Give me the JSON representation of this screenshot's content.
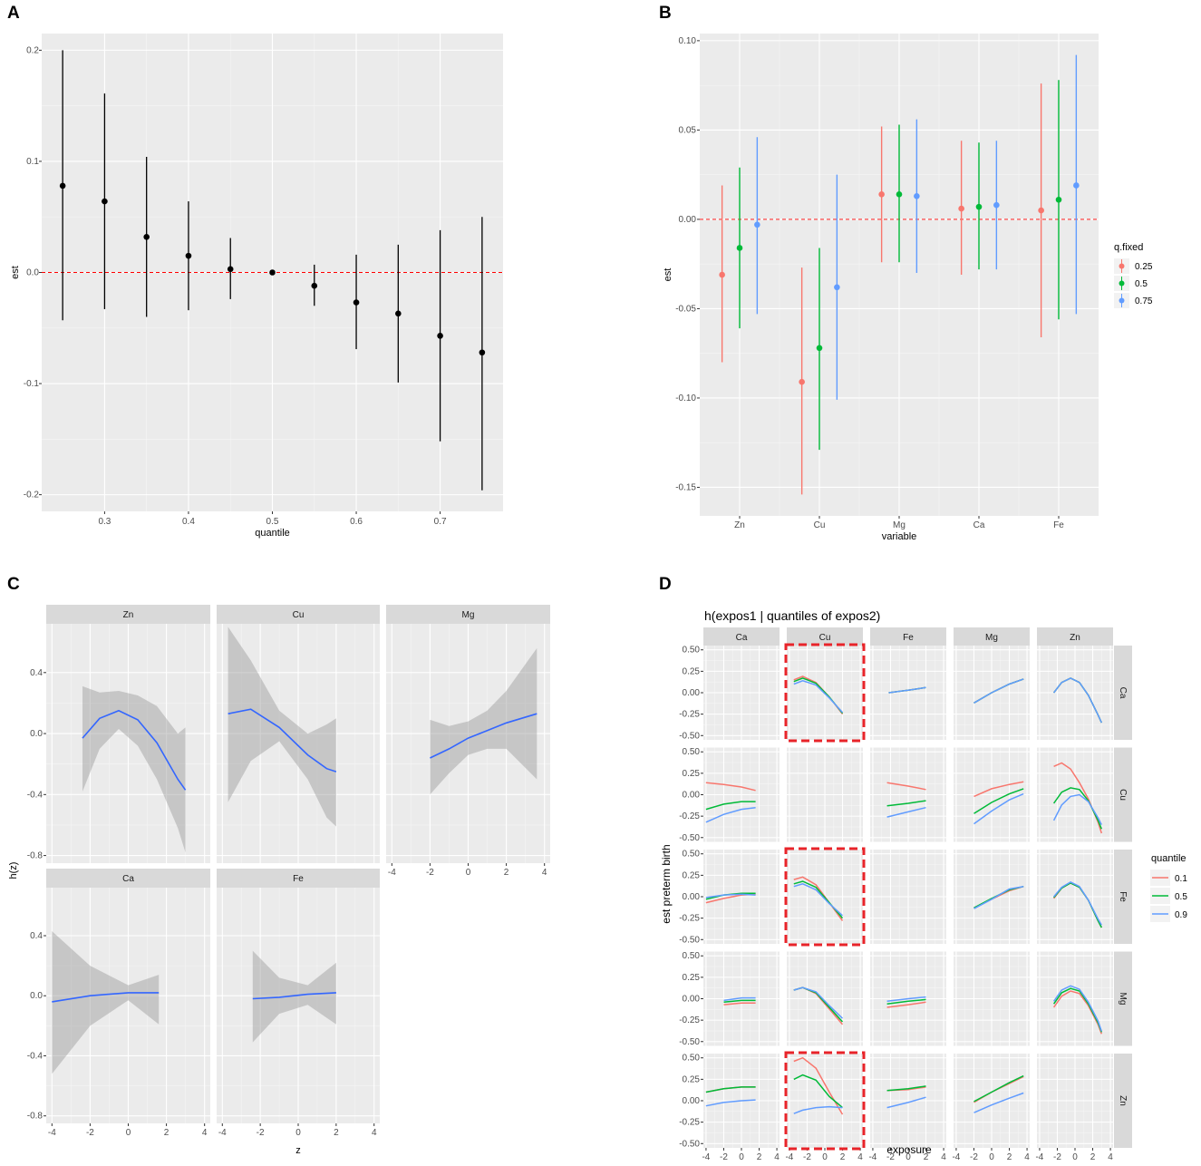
{
  "chart_data": [
    {
      "panel": "A",
      "type": "errorbar",
      "xlabel": "quantile",
      "ylabel": "est",
      "xlim": [
        0.225,
        0.775
      ],
      "ylim": [
        -0.215,
        0.215
      ],
      "xticks": [
        0.3,
        0.4,
        0.5,
        0.6,
        0.7
      ],
      "xtick_labels": [
        "0.3",
        "0.4",
        "0.5",
        "0.6",
        "0.7"
      ],
      "yticks": [
        -0.2,
        -0.1,
        0.0,
        0.1,
        0.2
      ],
      "ytick_labels": [
        "-0.2",
        "-0.1",
        "0.0",
        "0.1",
        "0.2"
      ],
      "reference_line": 0,
      "points": [
        {
          "x": 0.25,
          "y": 0.078,
          "lo": -0.043,
          "hi": 0.2
        },
        {
          "x": 0.3,
          "y": 0.064,
          "lo": -0.033,
          "hi": 0.161
        },
        {
          "x": 0.35,
          "y": 0.032,
          "lo": -0.04,
          "hi": 0.104
        },
        {
          "x": 0.4,
          "y": 0.015,
          "lo": -0.034,
          "hi": 0.064
        },
        {
          "x": 0.45,
          "y": 0.003,
          "lo": -0.024,
          "hi": 0.031
        },
        {
          "x": 0.5,
          "y": 0.0,
          "lo": 0.0,
          "hi": 0.0
        },
        {
          "x": 0.55,
          "y": -0.012,
          "lo": -0.03,
          "hi": 0.007
        },
        {
          "x": 0.6,
          "y": -0.027,
          "lo": -0.069,
          "hi": 0.016
        },
        {
          "x": 0.65,
          "y": -0.037,
          "lo": -0.099,
          "hi": 0.025
        },
        {
          "x": 0.7,
          "y": -0.057,
          "lo": -0.152,
          "hi": 0.038
        },
        {
          "x": 0.75,
          "y": -0.072,
          "lo": -0.196,
          "hi": 0.05
        }
      ]
    },
    {
      "panel": "B",
      "type": "errorbar",
      "xlabel": "variable",
      "ylabel": "est",
      "categories": [
        "Zn",
        "Cu",
        "Mg",
        "Ca",
        "Fe"
      ],
      "ylim": [
        -0.166,
        0.104
      ],
      "yticks": [
        -0.15,
        -0.1,
        -0.05,
        0.0,
        0.05,
        0.1
      ],
      "ytick_labels": [
        "-0.15",
        "-0.10",
        "-0.05",
        "0.00",
        "0.05",
        "0.10"
      ],
      "reference_line": 0,
      "legend_title": "q.fixed",
      "legend_position": "right",
      "series": [
        {
          "name": "0.25",
          "color": "#F8766D",
          "values": [
            -0.031,
            -0.091,
            0.014,
            0.006,
            0.005
          ],
          "lo": [
            -0.08,
            -0.154,
            -0.024,
            -0.031,
            -0.066
          ],
          "hi": [
            0.019,
            -0.027,
            0.052,
            0.044,
            0.076
          ]
        },
        {
          "name": "0.5",
          "color": "#00BA38",
          "values": [
            -0.016,
            -0.072,
            0.014,
            0.007,
            0.011
          ],
          "lo": [
            -0.061,
            -0.129,
            -0.024,
            -0.028,
            -0.056
          ],
          "hi": [
            0.029,
            -0.016,
            0.053,
            0.043,
            0.078
          ]
        },
        {
          "name": "0.75",
          "color": "#619CFF",
          "values": [
            -0.003,
            -0.038,
            0.013,
            0.008,
            0.019
          ],
          "lo": [
            -0.053,
            -0.101,
            -0.03,
            -0.028,
            -0.053
          ],
          "hi": [
            0.046,
            0.025,
            0.056,
            0.044,
            0.092
          ]
        }
      ]
    },
    {
      "panel": "C",
      "type": "line",
      "xlabel": "z",
      "ylabel": "h(z)",
      "xlim": [
        -4.3,
        4.3
      ],
      "ylim": [
        -0.85,
        0.72
      ],
      "xticks": [
        -4,
        -2,
        0,
        2,
        4
      ],
      "xtick_labels": [
        "-4",
        "-2",
        "0",
        "2",
        "4"
      ],
      "yticks": [
        -0.8,
        -0.4,
        0.0,
        0.4
      ],
      "ytick_labels": [
        "-0.8",
        "-0.4",
        "0.0",
        "0.4"
      ],
      "line_color": "#3366FF",
      "band_color": "#999999",
      "facets": [
        {
          "name": "Zn",
          "x": [
            -2.4,
            -1.5,
            -0.5,
            0.5,
            1.5,
            2.6,
            3.0
          ],
          "y": [
            -0.03,
            0.1,
            0.15,
            0.09,
            -0.06,
            -0.3,
            -0.37
          ],
          "lo": [
            -0.38,
            -0.1,
            0.03,
            -0.08,
            -0.3,
            -0.62,
            -0.78
          ],
          "hi": [
            0.31,
            0.27,
            0.28,
            0.25,
            0.18,
            0.0,
            0.04
          ]
        },
        {
          "name": "Cu",
          "x": [
            -3.7,
            -2.5,
            -1.0,
            0.5,
            1.5,
            2.0
          ],
          "y": [
            0.13,
            0.16,
            0.04,
            -0.14,
            -0.23,
            -0.25
          ],
          "lo": [
            -0.45,
            -0.18,
            -0.05,
            -0.3,
            -0.55,
            -0.61
          ],
          "hi": [
            0.7,
            0.48,
            0.15,
            0.0,
            0.06,
            0.1
          ]
        },
        {
          "name": "Mg",
          "x": [
            -2.0,
            -1.0,
            0.0,
            1.0,
            2.0,
            3.6
          ],
          "y": [
            -0.16,
            -0.1,
            -0.03,
            0.02,
            0.07,
            0.13
          ],
          "lo": [
            -0.4,
            -0.26,
            -0.14,
            -0.1,
            -0.1,
            -0.3
          ],
          "hi": [
            0.09,
            0.05,
            0.08,
            0.15,
            0.28,
            0.56
          ]
        },
        {
          "name": "Ca",
          "x": [
            -4.0,
            -2.0,
            0.0,
            1.6
          ],
          "y": [
            -0.04,
            0.0,
            0.02,
            0.02
          ],
          "lo": [
            -0.52,
            -0.2,
            -0.03,
            -0.19
          ],
          "hi": [
            0.43,
            0.2,
            0.07,
            0.14
          ]
        },
        {
          "name": "Fe",
          "x": [
            -2.4,
            -1.0,
            0.5,
            2.0
          ],
          "y": [
            -0.02,
            -0.01,
            0.01,
            0.02
          ],
          "lo": [
            -0.31,
            -0.12,
            -0.06,
            -0.19
          ],
          "hi": [
            0.3,
            0.12,
            0.07,
            0.22
          ]
        }
      ]
    },
    {
      "panel": "D",
      "type": "line",
      "title": "h(expos1 | quantiles of expos2)",
      "xlabel": "exposure",
      "ylabel": "est preterm birth",
      "xlim": [
        -4.3,
        4.3
      ],
      "ylim": [
        -0.55,
        0.55
      ],
      "xticks": [
        -4,
        -2,
        0,
        2,
        4
      ],
      "xtick_labels": [
        "-4",
        "-2",
        "0",
        "2",
        "4"
      ],
      "yticks": [
        -0.5,
        -0.25,
        0.0,
        0.25,
        0.5
      ],
      "ytick_labels": [
        "-0.50",
        "-0.25",
        "0.00",
        "0.25",
        "0.50"
      ],
      "columns": [
        "Ca",
        "Cu",
        "Fe",
        "Mg",
        "Zn"
      ],
      "rows": [
        "Ca",
        "Cu",
        "Fe",
        "Mg",
        "Zn"
      ],
      "legend_title": "quantile",
      "legend_position": "right",
      "series_names": [
        "0.1",
        "0.5",
        "0.9"
      ],
      "series_colors": [
        "#F8766D",
        "#00BA38",
        "#619CFF"
      ],
      "highlight_color": "#E8242A",
      "highlighted_cells": [
        [
          0,
          1
        ],
        [
          2,
          1
        ],
        [
          4,
          1
        ]
      ],
      "cells": [
        {
          "row": 0,
          "col": 1,
          "x": [
            -3.5,
            -2.5,
            -1.0,
            0.5,
            2.0
          ],
          "series": [
            [
              0.15,
              0.19,
              0.12,
              -0.05,
              -0.25
            ],
            [
              0.13,
              0.17,
              0.11,
              -0.05,
              -0.24
            ],
            [
              0.1,
              0.14,
              0.09,
              -0.06,
              -0.23
            ]
          ]
        },
        {
          "row": 0,
          "col": 2,
          "x": [
            -2.2,
            0.0,
            2.0
          ],
          "series": [
            [
              0.0,
              0.03,
              0.06
            ],
            [
              0.0,
              0.03,
              0.06
            ],
            [
              0.0,
              0.03,
              0.06
            ]
          ]
        },
        {
          "row": 0,
          "col": 3,
          "x": [
            -2.0,
            0.0,
            2.0,
            3.6
          ],
          "series": [
            [
              -0.12,
              0.0,
              0.1,
              0.16
            ],
            [
              -0.12,
              0.0,
              0.1,
              0.16
            ],
            [
              -0.12,
              0.0,
              0.1,
              0.16
            ]
          ]
        },
        {
          "row": 0,
          "col": 4,
          "x": [
            -2.4,
            -1.5,
            -0.5,
            0.5,
            1.5,
            2.6,
            3.0
          ],
          "series": [
            [
              0.0,
              0.12,
              0.17,
              0.12,
              -0.03,
              -0.26,
              -0.35
            ],
            [
              0.0,
              0.12,
              0.17,
              0.12,
              -0.03,
              -0.26,
              -0.35
            ],
            [
              0.0,
              0.12,
              0.17,
              0.12,
              -0.03,
              -0.26,
              -0.35
            ]
          ]
        },
        {
          "row": 1,
          "col": 0,
          "x": [
            -4.0,
            -2.0,
            0.0,
            1.6
          ],
          "series": [
            [
              0.14,
              0.12,
              0.09,
              0.05
            ],
            [
              -0.17,
              -0.11,
              -0.08,
              -0.08
            ],
            [
              -0.32,
              -0.23,
              -0.17,
              -0.15
            ]
          ]
        },
        {
          "row": 1,
          "col": 2,
          "x": [
            -2.4,
            0.0,
            2.0
          ],
          "series": [
            [
              0.14,
              0.1,
              0.06
            ],
            [
              -0.13,
              -0.1,
              -0.07
            ],
            [
              -0.26,
              -0.2,
              -0.15
            ]
          ]
        },
        {
          "row": 1,
          "col": 3,
          "x": [
            -2.0,
            0.0,
            2.0,
            3.6
          ],
          "series": [
            [
              -0.02,
              0.07,
              0.12,
              0.15
            ],
            [
              -0.22,
              -0.09,
              0.01,
              0.07
            ],
            [
              -0.34,
              -0.19,
              -0.06,
              0.01
            ]
          ]
        },
        {
          "row": 1,
          "col": 4,
          "x": [
            -2.4,
            -1.5,
            -0.5,
            0.5,
            1.5,
            2.6,
            3.0
          ],
          "series": [
            [
              0.33,
              0.37,
              0.3,
              0.14,
              -0.05,
              -0.32,
              -0.45
            ],
            [
              -0.1,
              0.03,
              0.08,
              0.06,
              -0.07,
              -0.3,
              -0.4
            ],
            [
              -0.3,
              -0.12,
              -0.02,
              0.0,
              -0.08,
              -0.27,
              -0.35
            ]
          ]
        },
        {
          "row": 2,
          "col": 0,
          "x": [
            -4.0,
            -2.0,
            0.0,
            1.6
          ],
          "series": [
            [
              -0.07,
              -0.02,
              0.02,
              0.03
            ],
            [
              -0.03,
              0.02,
              0.04,
              0.04
            ],
            [
              -0.01,
              0.02,
              0.03,
              0.02
            ]
          ]
        },
        {
          "row": 2,
          "col": 1,
          "x": [
            -3.5,
            -2.5,
            -1.0,
            0.5,
            2.0
          ],
          "series": [
            [
              0.2,
              0.23,
              0.14,
              -0.07,
              -0.28
            ],
            [
              0.15,
              0.18,
              0.11,
              -0.07,
              -0.25
            ],
            [
              0.12,
              0.15,
              0.08,
              -0.08,
              -0.22
            ]
          ]
        },
        {
          "row": 2,
          "col": 3,
          "x": [
            -2.0,
            0.0,
            2.0,
            3.6
          ],
          "series": [
            [
              -0.13,
              -0.03,
              0.07,
              0.12
            ],
            [
              -0.13,
              -0.02,
              0.08,
              0.12
            ],
            [
              -0.14,
              -0.03,
              0.09,
              0.12
            ]
          ]
        },
        {
          "row": 2,
          "col": 4,
          "x": [
            -2.4,
            -1.5,
            -0.5,
            0.5,
            1.5,
            2.6,
            3.0
          ],
          "series": [
            [
              -0.02,
              0.1,
              0.16,
              0.11,
              -0.04,
              -0.28,
              -0.36
            ],
            [
              -0.01,
              0.1,
              0.16,
              0.11,
              -0.04,
              -0.28,
              -0.36
            ],
            [
              0.0,
              0.11,
              0.17,
              0.12,
              -0.04,
              -0.26,
              -0.33
            ]
          ]
        },
        {
          "row": 3,
          "col": 0,
          "x": [
            -2.0,
            0.0,
            1.6
          ],
          "series": [
            [
              -0.07,
              -0.05,
              -0.05
            ],
            [
              -0.04,
              -0.02,
              -0.02
            ],
            [
              -0.02,
              0.01,
              0.01
            ]
          ]
        },
        {
          "row": 3,
          "col": 1,
          "x": [
            -3.5,
            -2.5,
            -1.0,
            0.5,
            2.0
          ],
          "series": [
            [
              0.1,
              0.13,
              0.06,
              -0.12,
              -0.3
            ],
            [
              0.1,
              0.13,
              0.07,
              -0.1,
              -0.27
            ],
            [
              0.1,
              0.13,
              0.08,
              -0.08,
              -0.23
            ]
          ]
        },
        {
          "row": 3,
          "col": 2,
          "x": [
            -2.4,
            0.0,
            2.0
          ],
          "series": [
            [
              -0.1,
              -0.07,
              -0.04
            ],
            [
              -0.06,
              -0.03,
              -0.01
            ],
            [
              -0.03,
              0.0,
              0.02
            ]
          ]
        },
        {
          "row": 3,
          "col": 4,
          "x": [
            -2.4,
            -1.5,
            -0.5,
            0.5,
            1.5,
            2.6,
            3.0
          ],
          "series": [
            [
              -0.1,
              0.03,
              0.09,
              0.06,
              -0.08,
              -0.3,
              -0.41
            ],
            [
              -0.06,
              0.07,
              0.12,
              0.09,
              -0.06,
              -0.28,
              -0.39
            ],
            [
              -0.03,
              0.1,
              0.15,
              0.11,
              -0.04,
              -0.26,
              -0.38
            ]
          ]
        },
        {
          "row": 4,
          "col": 0,
          "x": [
            -4.0,
            -2.0,
            0.0,
            1.6
          ],
          "series": [
            [
              0.1,
              0.14,
              0.16,
              0.16
            ],
            [
              0.1,
              0.14,
              0.16,
              0.16
            ],
            [
              -0.06,
              -0.02,
              0.0,
              0.01
            ]
          ]
        },
        {
          "row": 4,
          "col": 1,
          "x": [
            -3.5,
            -2.5,
            -1.0,
            0.5,
            2.0
          ],
          "series": [
            [
              0.46,
              0.5,
              0.38,
              0.1,
              -0.16
            ],
            [
              0.25,
              0.3,
              0.24,
              0.05,
              -0.08
            ],
            [
              -0.15,
              -0.11,
              -0.08,
              -0.07,
              -0.08
            ]
          ]
        },
        {
          "row": 4,
          "col": 2,
          "x": [
            -2.4,
            0.0,
            2.0
          ],
          "series": [
            [
              0.12,
              0.13,
              0.16
            ],
            [
              0.12,
              0.14,
              0.17
            ],
            [
              -0.08,
              -0.02,
              0.04
            ]
          ]
        },
        {
          "row": 4,
          "col": 3,
          "x": [
            -2.0,
            0.0,
            2.0,
            3.6
          ],
          "series": [
            [
              -0.02,
              0.1,
              0.2,
              0.28
            ],
            [
              -0.01,
              0.1,
              0.21,
              0.29
            ],
            [
              -0.14,
              -0.05,
              0.03,
              0.09
            ]
          ]
        }
      ]
    }
  ]
}
